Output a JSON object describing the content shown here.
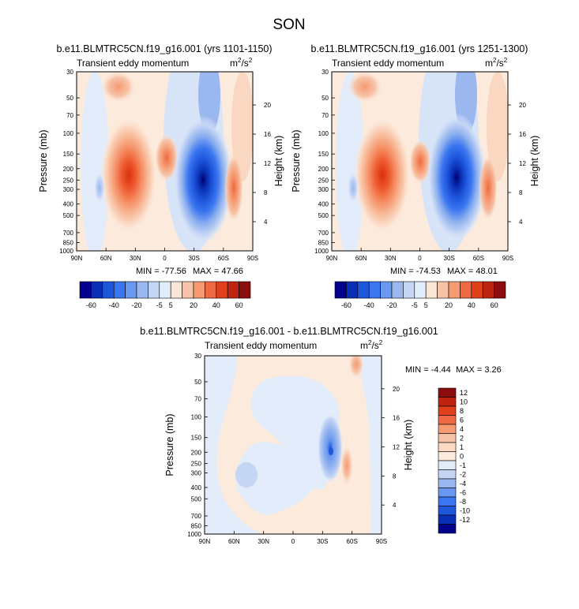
{
  "figure_title": "SON",
  "chart_data": [
    {
      "type": "heatmap",
      "id": "p1",
      "title": "b.e11.BLMTRC5CN.f19_g16.001 (yrs 1101-1150)",
      "subtitle_left": "Transient eddy momentum",
      "units": {
        "base": "m",
        "base_exp": "2",
        "sep": "/s",
        "den_exp": "2"
      },
      "xlabel": "",
      "ylabel": "Pressure (mb)",
      "y2label": "Height (km)",
      "x_ticks": [
        "90N",
        "60N",
        "30N",
        "0",
        "30S",
        "60S",
        "90S"
      ],
      "y_ticks": [
        "30",
        "50",
        "70",
        "100",
        "150",
        "200",
        "250",
        "300",
        "400",
        "500",
        "700",
        "850",
        "1000"
      ],
      "y2_ticks": [
        "20",
        "16",
        "12",
        "8",
        "4"
      ],
      "stats": {
        "min_label": "MIN = -77.56",
        "max_label": "MAX = 47.66"
      },
      "colorbar": {
        "orientation": "horizontal",
        "levels": [
          "-60",
          "-40",
          "-20",
          "-5",
          "5",
          "20",
          "40",
          "60"
        ],
        "colors": [
          "#02028c",
          "#0a2fb4",
          "#1e56dc",
          "#3a76f0",
          "#6a98f0",
          "#9ab7f0",
          "#c5d6f5",
          "#e3ecfa",
          "#fbe5d6",
          "#f7c3a8",
          "#f59a72",
          "#ef6a42",
          "#e0401c",
          "#bf2410",
          "#8b0d0d"
        ]
      },
      "features": [
        {
          "lat": 35,
          "p": 230,
          "value": 47.66
        },
        {
          "lat": 0,
          "p": 200,
          "value": 15
        },
        {
          "lat": -40,
          "p": 260,
          "value": -77.56
        },
        {
          "lat": -65,
          "p": 280,
          "value": 30
        },
        {
          "lat": 60,
          "p": 260,
          "value": -12
        }
      ]
    },
    {
      "type": "heatmap",
      "id": "p2",
      "title": "b.e11.BLMTRC5CN.f19_g16.001 (yrs 1251-1300)",
      "subtitle_left": "Transient eddy momentum",
      "units": {
        "base": "m",
        "base_exp": "2",
        "sep": "/s",
        "den_exp": "2"
      },
      "xlabel": "",
      "ylabel": "Pressure (mb)",
      "y2label": "Height (km)",
      "x_ticks": [
        "90N",
        "60N",
        "30N",
        "0",
        "30S",
        "60S",
        "90S"
      ],
      "y_ticks": [
        "30",
        "50",
        "70",
        "100",
        "150",
        "200",
        "250",
        "300",
        "400",
        "500",
        "700",
        "850",
        "1000"
      ],
      "y2_ticks": [
        "20",
        "16",
        "12",
        "8",
        "4"
      ],
      "stats": {
        "min_label": "MIN = -74.53",
        "max_label": "MAX = 48.01"
      },
      "colorbar": {
        "orientation": "horizontal",
        "levels": [
          "-60",
          "-40",
          "-20",
          "-5",
          "5",
          "20",
          "40",
          "60"
        ],
        "colors": [
          "#02028c",
          "#0a2fb4",
          "#1e56dc",
          "#3a76f0",
          "#6a98f0",
          "#9ab7f0",
          "#c5d6f5",
          "#e3ecfa",
          "#fbe5d6",
          "#f7c3a8",
          "#f59a72",
          "#ef6a42",
          "#e0401c",
          "#bf2410",
          "#8b0d0d"
        ]
      },
      "features": [
        {
          "lat": 35,
          "p": 230,
          "value": 48.01
        },
        {
          "lat": 0,
          "p": 200,
          "value": 15
        },
        {
          "lat": -40,
          "p": 250,
          "value": -74.53
        },
        {
          "lat": -65,
          "p": 290,
          "value": 28
        },
        {
          "lat": 60,
          "p": 260,
          "value": -12
        }
      ]
    },
    {
      "type": "heatmap",
      "id": "p3",
      "title": "b.e11.BLMTRC5CN.f19_g16.001 - b.e11.BLMTRC5CN.f19_g16.001",
      "subtitle_left": "Transient eddy momentum",
      "units": {
        "base": "m",
        "base_exp": "2",
        "sep": "/s",
        "den_exp": "2"
      },
      "xlabel": "",
      "ylabel": "Pressure (mb)",
      "y2label": "Height (km)",
      "x_ticks": [
        "90N",
        "60N",
        "30N",
        "0",
        "30S",
        "60S",
        "90S"
      ],
      "y_ticks": [
        "30",
        "50",
        "70",
        "100",
        "150",
        "200",
        "250",
        "300",
        "400",
        "500",
        "700",
        "850",
        "1000"
      ],
      "y2_ticks": [
        "20",
        "16",
        "12",
        "8",
        "4"
      ],
      "stats": {
        "min_label": "MIN = -4.44",
        "max_label": "MAX = 3.26"
      },
      "colorbar": {
        "orientation": "vertical",
        "levels": [
          "12",
          "10",
          "8",
          "6",
          "4",
          "2",
          "1",
          "0",
          "-1",
          "-2",
          "-4",
          "-6",
          "-8",
          "-10",
          "-12"
        ],
        "colors": [
          "#8b0d0d",
          "#bf2410",
          "#e0401c",
          "#ef6a42",
          "#f59a72",
          "#f7c3a8",
          "#fbd9c2",
          "#fcebdd",
          "#e3ecfa",
          "#c5d6f5",
          "#9ab7f0",
          "#6a98f0",
          "#3a76f0",
          "#1e56dc",
          "#0a2fb4",
          "#02028c"
        ]
      },
      "features": [
        {
          "lat": -38,
          "p": 200,
          "value": -4.44
        },
        {
          "lat": -58,
          "p": 260,
          "value": 3.26
        },
        {
          "lat": -65,
          "p": 35,
          "value": 2.5
        },
        {
          "lat": 50,
          "p": 280,
          "value": -1.5
        }
      ]
    }
  ]
}
